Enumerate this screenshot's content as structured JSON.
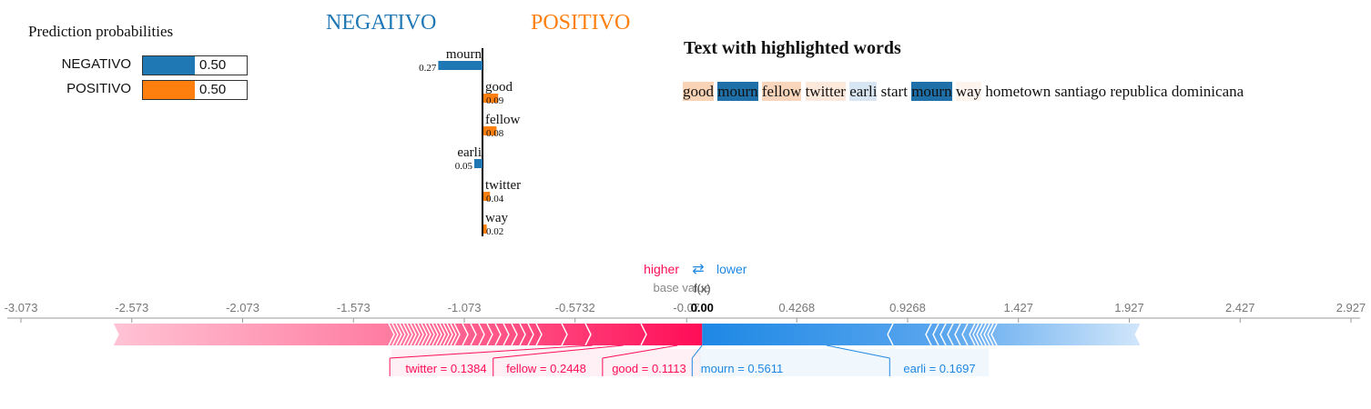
{
  "prediction": {
    "title": "Prediction probabilities",
    "rows": [
      {
        "label": "NEGATIVO",
        "value": 0.5,
        "value_label": "0.50",
        "color": "#1f77b4"
      },
      {
        "label": "POSITIVO",
        "value": 0.5,
        "value_label": "0.50",
        "color": "#ff7f0e"
      }
    ]
  },
  "classes": {
    "negative": {
      "label": "NEGATIVO",
      "color": "#1f77b4"
    },
    "positive": {
      "label": "POSITIVO",
      "color": "#ff7f0e"
    }
  },
  "highlight": {
    "title": "Text with highlighted words",
    "words": [
      {
        "text": "good",
        "bg": "#f9d3b5"
      },
      {
        "text": "mourn",
        "bg": "#1f6fa8",
        "fg": "#111"
      },
      {
        "text": "fellow",
        "bg": "#f9d6bb"
      },
      {
        "text": "twitter",
        "bg": "#fde9dc"
      },
      {
        "text": "earli",
        "bg": "#d8e6f3"
      },
      {
        "text": "start",
        "bg": ""
      },
      {
        "text": "mourn",
        "bg": "#1f6fa8",
        "fg": "#111"
      },
      {
        "text": "way",
        "bg": "#fef4ee"
      },
      {
        "text": "hometown",
        "bg": ""
      },
      {
        "text": "santiago",
        "bg": ""
      },
      {
        "text": "republica",
        "bg": ""
      },
      {
        "text": "dominicana",
        "bg": ""
      }
    ]
  },
  "force": {
    "higher_label": "higher",
    "lower_label": "lower",
    "arrows_glyph": "⇄",
    "base_value_label": "base value",
    "fx_label": "f(x)",
    "fx_value": "0.00",
    "pos_color": "#ff0d57",
    "neg_color": "#1e88e5",
    "ticks": [
      "-3.073",
      "-2.573",
      "-2.073",
      "-1.573",
      "-1.073",
      "-0.5732",
      "-0.07",
      "0.4268",
      "0.9268",
      "1.427",
      "1.927",
      "2.427",
      "2.927"
    ],
    "labels": [
      {
        "text": "twitter = 0.1384",
        "side": "pos"
      },
      {
        "text": "fellow = 0.2448",
        "side": "pos"
      },
      {
        "text": "good = 0.1113",
        "side": "pos"
      },
      {
        "text": "mourn = 0.5611",
        "side": "neg"
      },
      {
        "text": "earli = 0.1697",
        "side": "neg"
      }
    ]
  },
  "chart_data": [
    {
      "type": "bar",
      "title": "Prediction probabilities",
      "categories": [
        "NEGATIVO",
        "POSITIVO"
      ],
      "values": [
        0.5,
        0.5
      ]
    },
    {
      "type": "bar",
      "categories": [
        "mourn",
        "good",
        "fellow",
        "earli",
        "twitter",
        "way"
      ],
      "values": [
        -0.27,
        0.09,
        0.08,
        -0.05,
        0.04,
        0.02
      ],
      "value_labels": [
        "0.27",
        "0.09",
        "0.08",
        "0.05",
        "0.04",
        "0.02"
      ]
    },
    {
      "type": "bar",
      "features": [
        {
          "name": "twitter",
          "value": 0.1384
        },
        {
          "name": "fellow",
          "value": 0.2448
        },
        {
          "name": "good",
          "value": 0.1113
        },
        {
          "name": "mourn",
          "value": 0.5611
        },
        {
          "name": "earli",
          "value": 0.1697
        }
      ],
      "xlim": [
        -3.073,
        2.927
      ],
      "fx": 0.0
    }
  ]
}
